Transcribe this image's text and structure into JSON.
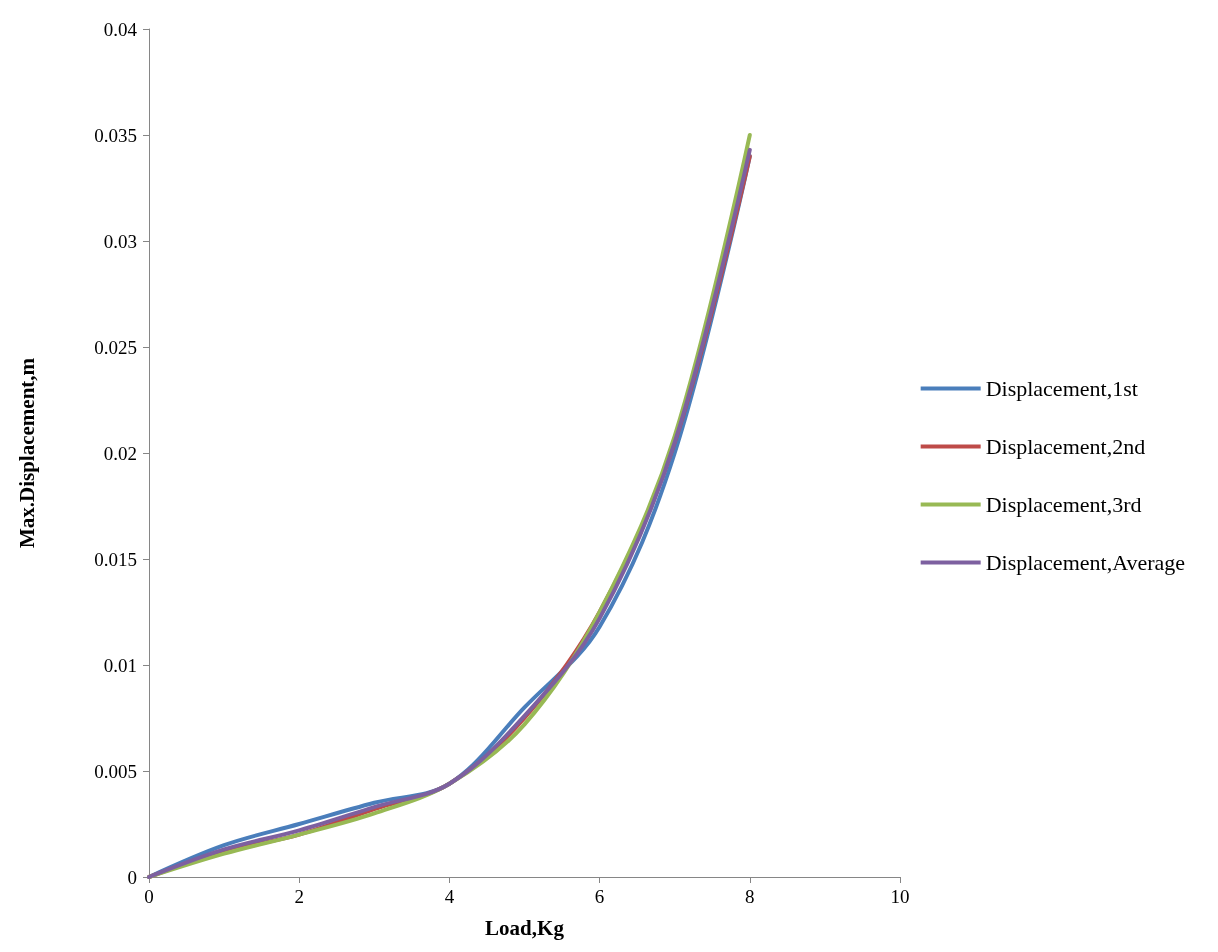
{
  "chart_data": {
    "type": "line",
    "xlabel": "Load,Kg",
    "ylabel": "Max.Displacement,m",
    "x": [
      0,
      1,
      2,
      3,
      4,
      5,
      6,
      7,
      8
    ],
    "series": [
      {
        "name": "Displacement,1st",
        "color": "#4a7ebb",
        "values": [
          0,
          0.0015,
          0.0025,
          0.0035,
          0.0044,
          0.008,
          0.0118,
          0.02,
          0.034
        ]
      },
      {
        "name": "Displacement,2nd",
        "color": "#be4b48",
        "values": [
          0,
          0.0012,
          0.002,
          0.0032,
          0.0044,
          0.0075,
          0.0125,
          0.0205,
          0.034
        ]
      },
      {
        "name": "Displacement,3rd",
        "color": "#98b954",
        "values": [
          0,
          0.0011,
          0.002,
          0.003,
          0.0044,
          0.0072,
          0.0125,
          0.0208,
          0.035
        ]
      },
      {
        "name": "Displacement,Average",
        "color": "#7d60a0",
        "values": [
          0,
          0.0013,
          0.0022,
          0.0033,
          0.0044,
          0.0076,
          0.0122,
          0.0205,
          0.0343
        ]
      }
    ],
    "xlim": [
      0,
      10
    ],
    "xticks": [
      0,
      2,
      4,
      6,
      8,
      10
    ],
    "ylim": [
      0,
      0.04
    ],
    "yticks": [
      0,
      0.005,
      0.01,
      0.015,
      0.02,
      0.025,
      0.03,
      0.035,
      0.04
    ],
    "grid": false,
    "legend": "right",
    "marker": "none",
    "line_style": "solid"
  }
}
